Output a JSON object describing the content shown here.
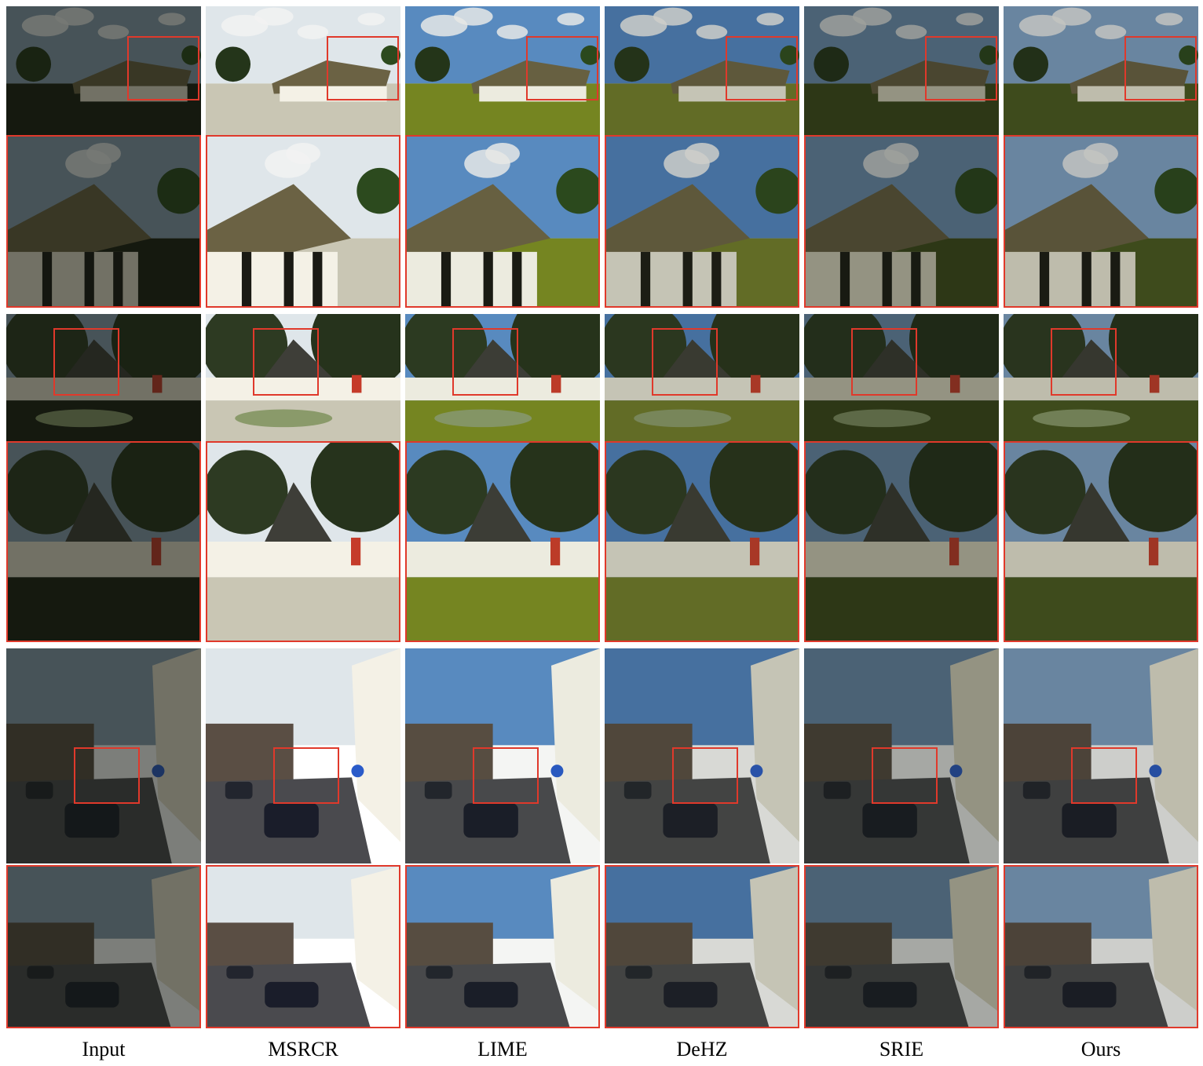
{
  "figure": {
    "methods": [
      {
        "label": "Input",
        "sky": "#8aa0b3",
        "ground": "#1b1f12",
        "house": "#e8e3d0",
        "shade": 0.55,
        "tint": "#10140c"
      },
      {
        "label": "MSRCR",
        "sky": "#dfe6ea",
        "ground": "#c9c6b4",
        "house": "#f4f1e6",
        "shade": 0.0,
        "tint": "#d8d8cf"
      },
      {
        "label": "LIME",
        "sky": "#5b8fc9",
        "ground": "#7a8a22",
        "house": "#f7f5ea",
        "shade": 0.05,
        "tint": "#2c3316"
      },
      {
        "label": "DeHZ",
        "sky": "#4d7fbd",
        "ground": "#6f7a2a",
        "house": "#e8e6d8",
        "shade": 0.18,
        "tint": "#252a16"
      },
      {
        "label": "SRIE",
        "sky": "#6c8fb4",
        "ground": "#3d4a1a",
        "house": "#e2ddc8",
        "shade": 0.38,
        "tint": "#161a10"
      },
      {
        "label": "Ours",
        "sky": "#7fa2c8",
        "ground": "#48581f",
        "house": "#ece8d8",
        "shade": 0.22,
        "tint": "#1c2012"
      }
    ],
    "highlight_color": "#e0392b"
  }
}
